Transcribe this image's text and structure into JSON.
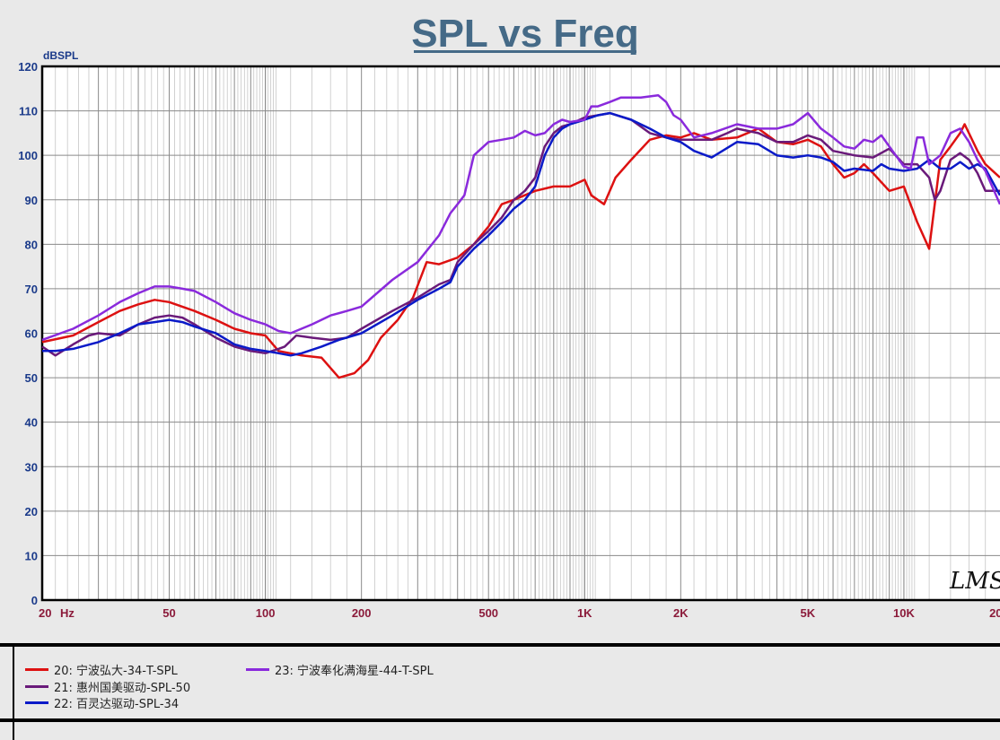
{
  "chart_data": {
    "type": "line",
    "title": "SPL vs Freq",
    "ylabel": "dBSPL",
    "xlabel": "Hz",
    "xscale": "log",
    "xlim": [
      20,
      20000
    ],
    "ylim": [
      0,
      120
    ],
    "grid": true,
    "yticks": [
      "0",
      "10",
      "20",
      "30",
      "40",
      "50",
      "60",
      "70",
      "80",
      "90",
      "100",
      "110",
      "120"
    ],
    "xticks": [
      {
        "v": 20,
        "label": "20"
      },
      {
        "v": 50,
        "label": "50"
      },
      {
        "v": 100,
        "label": "100"
      },
      {
        "v": 200,
        "label": "200"
      },
      {
        "v": 500,
        "label": "500"
      },
      {
        "v": 1000,
        "label": "1K"
      },
      {
        "v": 2000,
        "label": "2K"
      },
      {
        "v": 5000,
        "label": "5K"
      },
      {
        "v": 10000,
        "label": "10K"
      },
      {
        "v": 20000,
        "label": "20K"
      }
    ],
    "watermark": "LMS",
    "series": [
      {
        "name": "20: 宁波弘大-34-T-SPL",
        "color": "#dd1111",
        "points": [
          [
            20,
            58
          ],
          [
            25,
            59.5
          ],
          [
            30,
            62.5
          ],
          [
            35,
            65
          ],
          [
            40,
            66.5
          ],
          [
            45,
            67.5
          ],
          [
            50,
            67
          ],
          [
            60,
            65
          ],
          [
            70,
            63
          ],
          [
            80,
            61
          ],
          [
            90,
            60
          ],
          [
            100,
            59.5
          ],
          [
            110,
            56
          ],
          [
            130,
            55
          ],
          [
            150,
            54.5
          ],
          [
            170,
            50
          ],
          [
            190,
            51
          ],
          [
            210,
            54
          ],
          [
            230,
            59
          ],
          [
            260,
            63
          ],
          [
            290,
            68
          ],
          [
            320,
            76
          ],
          [
            350,
            75.5
          ],
          [
            400,
            77
          ],
          [
            450,
            80
          ],
          [
            500,
            84
          ],
          [
            550,
            89
          ],
          [
            600,
            90
          ],
          [
            700,
            92
          ],
          [
            800,
            93
          ],
          [
            900,
            93
          ],
          [
            1000,
            94.5
          ],
          [
            1050,
            91
          ],
          [
            1150,
            89
          ],
          [
            1250,
            95
          ],
          [
            1400,
            99
          ],
          [
            1600,
            103.5
          ],
          [
            1800,
            104.5
          ],
          [
            2000,
            104
          ],
          [
            2200,
            105
          ],
          [
            2500,
            103.5
          ],
          [
            3000,
            104
          ],
          [
            3500,
            106
          ],
          [
            4000,
            103
          ],
          [
            4500,
            102.5
          ],
          [
            5000,
            103.5
          ],
          [
            5500,
            102
          ],
          [
            6000,
            98
          ],
          [
            6500,
            95
          ],
          [
            7000,
            96
          ],
          [
            7500,
            98
          ],
          [
            8000,
            96
          ],
          [
            9000,
            92
          ],
          [
            10000,
            93
          ],
          [
            11000,
            85
          ],
          [
            12000,
            79
          ],
          [
            13000,
            99
          ],
          [
            14000,
            102
          ],
          [
            15000,
            105
          ],
          [
            15500,
            107
          ],
          [
            17000,
            101
          ],
          [
            18000,
            98
          ],
          [
            20000,
            95
          ]
        ]
      },
      {
        "name": "21: 惠州国美驱动-SPL-50",
        "color": "#6a1a7a",
        "points": [
          [
            20,
            57
          ],
          [
            22,
            55
          ],
          [
            25,
            57.5
          ],
          [
            28,
            59.5
          ],
          [
            30,
            60
          ],
          [
            35,
            59.5
          ],
          [
            40,
            62
          ],
          [
            45,
            63.5
          ],
          [
            50,
            64
          ],
          [
            55,
            63.5
          ],
          [
            60,
            62
          ],
          [
            70,
            59
          ],
          [
            80,
            57
          ],
          [
            90,
            56
          ],
          [
            100,
            55.5
          ],
          [
            110,
            56.5
          ],
          [
            115,
            57
          ],
          [
            125,
            59.5
          ],
          [
            140,
            59
          ],
          [
            160,
            58.5
          ],
          [
            180,
            59
          ],
          [
            200,
            61
          ],
          [
            250,
            65
          ],
          [
            300,
            68
          ],
          [
            350,
            71
          ],
          [
            380,
            72
          ],
          [
            400,
            76
          ],
          [
            450,
            80
          ],
          [
            500,
            83
          ],
          [
            550,
            86
          ],
          [
            600,
            90
          ],
          [
            650,
            92
          ],
          [
            700,
            95
          ],
          [
            750,
            102
          ],
          [
            800,
            105
          ],
          [
            850,
            106.5
          ],
          [
            900,
            107
          ],
          [
            1000,
            108.5
          ],
          [
            1100,
            109
          ],
          [
            1200,
            109.5
          ],
          [
            1400,
            108
          ],
          [
            1600,
            105
          ],
          [
            1800,
            104
          ],
          [
            2000,
            103.5
          ],
          [
            2500,
            103.5
          ],
          [
            2800,
            105
          ],
          [
            3000,
            106
          ],
          [
            3500,
            105
          ],
          [
            4000,
            103
          ],
          [
            4500,
            103
          ],
          [
            5000,
            104.5
          ],
          [
            5500,
            103.5
          ],
          [
            6000,
            101
          ],
          [
            7000,
            100
          ],
          [
            8000,
            99.5
          ],
          [
            9000,
            101.5
          ],
          [
            10000,
            98
          ],
          [
            11000,
            98
          ],
          [
            12000,
            95
          ],
          [
            12500,
            90
          ],
          [
            13000,
            92
          ],
          [
            14000,
            99
          ],
          [
            15000,
            100.5
          ],
          [
            16000,
            99
          ],
          [
            17000,
            96
          ],
          [
            18000,
            92
          ],
          [
            20000,
            92
          ]
        ]
      },
      {
        "name": "22: 百灵达驱动-SPL-34",
        "color": "#0a1ac8",
        "points": [
          [
            20,
            56
          ],
          [
            22,
            56
          ],
          [
            25,
            56.5
          ],
          [
            30,
            58
          ],
          [
            35,
            60
          ],
          [
            40,
            62
          ],
          [
            45,
            62.5
          ],
          [
            50,
            63
          ],
          [
            55,
            62.5
          ],
          [
            60,
            61.5
          ],
          [
            70,
            60
          ],
          [
            80,
            57.5
          ],
          [
            90,
            56.5
          ],
          [
            100,
            56
          ],
          [
            110,
            55.5
          ],
          [
            120,
            55
          ],
          [
            130,
            55.5
          ],
          [
            150,
            57
          ],
          [
            170,
            58.5
          ],
          [
            200,
            60
          ],
          [
            250,
            64
          ],
          [
            300,
            67.5
          ],
          [
            350,
            70
          ],
          [
            380,
            71.5
          ],
          [
            400,
            75
          ],
          [
            450,
            79
          ],
          [
            500,
            82
          ],
          [
            550,
            85
          ],
          [
            600,
            88
          ],
          [
            650,
            90
          ],
          [
            700,
            93
          ],
          [
            750,
            100
          ],
          [
            800,
            104
          ],
          [
            850,
            106
          ],
          [
            900,
            107
          ],
          [
            1000,
            108
          ],
          [
            1100,
            109
          ],
          [
            1200,
            109.5
          ],
          [
            1400,
            108
          ],
          [
            1600,
            106
          ],
          [
            1800,
            104
          ],
          [
            2000,
            103
          ],
          [
            2200,
            101
          ],
          [
            2500,
            99.5
          ],
          [
            3000,
            103
          ],
          [
            3500,
            102.5
          ],
          [
            4000,
            100
          ],
          [
            4500,
            99.5
          ],
          [
            5000,
            100
          ],
          [
            5500,
            99.5
          ],
          [
            6000,
            98.5
          ],
          [
            6500,
            96.5
          ],
          [
            7000,
            97
          ],
          [
            8000,
            96.5
          ],
          [
            8500,
            98
          ],
          [
            9000,
            97
          ],
          [
            10000,
            96.5
          ],
          [
            11000,
            97
          ],
          [
            12000,
            99
          ],
          [
            13000,
            97
          ],
          [
            14000,
            97
          ],
          [
            15000,
            98.5
          ],
          [
            16000,
            97
          ],
          [
            17000,
            98
          ],
          [
            18000,
            97
          ],
          [
            20000,
            91
          ]
        ]
      },
      {
        "name": "23: 宁波奉化满海星-44-T-SPL",
        "color": "#8a2adc",
        "points": [
          [
            20,
            58.5
          ],
          [
            25,
            61
          ],
          [
            30,
            64
          ],
          [
            35,
            67
          ],
          [
            40,
            69
          ],
          [
            45,
            70.5
          ],
          [
            50,
            70.5
          ],
          [
            55,
            70
          ],
          [
            60,
            69.5
          ],
          [
            70,
            67
          ],
          [
            80,
            64.5
          ],
          [
            90,
            63
          ],
          [
            100,
            62
          ],
          [
            110,
            60.5
          ],
          [
            120,
            60
          ],
          [
            140,
            62
          ],
          [
            160,
            64
          ],
          [
            180,
            65
          ],
          [
            200,
            66
          ],
          [
            250,
            72
          ],
          [
            300,
            76
          ],
          [
            350,
            82
          ],
          [
            380,
            87
          ],
          [
            400,
            89
          ],
          [
            420,
            91
          ],
          [
            450,
            100
          ],
          [
            500,
            103
          ],
          [
            550,
            103.5
          ],
          [
            600,
            104
          ],
          [
            650,
            105.5
          ],
          [
            700,
            104.5
          ],
          [
            750,
            105
          ],
          [
            800,
            107
          ],
          [
            850,
            108
          ],
          [
            900,
            107.5
          ],
          [
            1000,
            108
          ],
          [
            1050,
            111
          ],
          [
            1100,
            111
          ],
          [
            1200,
            112
          ],
          [
            1300,
            113
          ],
          [
            1500,
            113
          ],
          [
            1700,
            113.5
          ],
          [
            1800,
            112
          ],
          [
            1900,
            109
          ],
          [
            2000,
            108
          ],
          [
            2200,
            104
          ],
          [
            2500,
            105
          ],
          [
            3000,
            107
          ],
          [
            3500,
            106
          ],
          [
            4000,
            106
          ],
          [
            4500,
            107
          ],
          [
            5000,
            109.5
          ],
          [
            5500,
            106
          ],
          [
            6000,
            104
          ],
          [
            6500,
            102
          ],
          [
            7000,
            101.5
          ],
          [
            7500,
            103.5
          ],
          [
            8000,
            103
          ],
          [
            8500,
            104.5
          ],
          [
            9000,
            102
          ],
          [
            10000,
            97.5
          ],
          [
            10500,
            97
          ],
          [
            11000,
            104
          ],
          [
            11500,
            104
          ],
          [
            12000,
            98
          ],
          [
            13000,
            100
          ],
          [
            14000,
            105
          ],
          [
            15000,
            106
          ],
          [
            16000,
            103
          ],
          [
            17000,
            99
          ],
          [
            18000,
            96.5
          ],
          [
            20000,
            89
          ]
        ]
      }
    ]
  }
}
